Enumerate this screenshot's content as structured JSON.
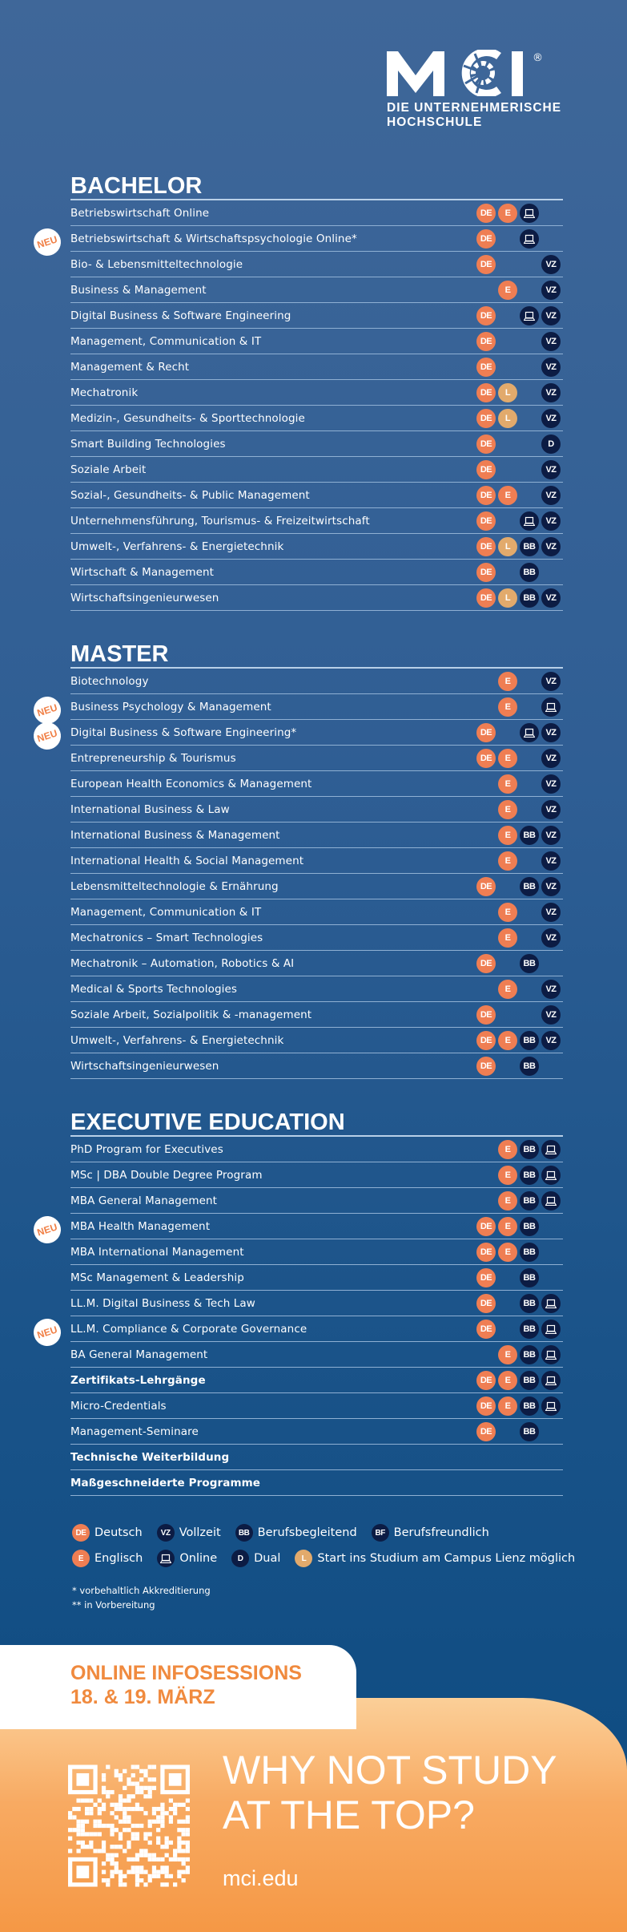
{
  "logo": {
    "mark": "MCI",
    "registered": "®",
    "subtitle_line1": "DIE UNTERNEHMERISCHE",
    "subtitle_line2": "HOCHSCHULE"
  },
  "badge_labels": {
    "DE": "DE",
    "E": "E",
    "L": "L",
    "BB": "BB",
    "VZ": "VZ",
    "D": "D",
    "BF": "BF",
    "ON": ""
  },
  "neu_label": "NEU",
  "colors": {
    "orange": "#ef7e53",
    "tan": "#e2aa6c",
    "navy": "#0c1c44",
    "accent": "#f08a3e"
  },
  "sections": [
    {
      "title": "BACHELOR",
      "rows": [
        {
          "name": "Betriebswirtschaft Online",
          "b": [
            "DE",
            "E",
            "ON",
            null
          ]
        },
        {
          "name": "Betriebswirtschaft & Wirtschaftspsychologie Online*",
          "neu": true,
          "b": [
            "DE",
            null,
            "ON",
            null
          ]
        },
        {
          "name": "Bio- & Lebensmitteltechnologie",
          "b": [
            "DE",
            null,
            null,
            "VZ"
          ]
        },
        {
          "name": "Business & Management",
          "b": [
            null,
            "E",
            null,
            "VZ"
          ]
        },
        {
          "name": "Digital Business & Software Engineering",
          "b": [
            "DE",
            null,
            "ON",
            "VZ"
          ]
        },
        {
          "name": "Management, Communication & IT",
          "b": [
            "DE",
            null,
            null,
            "VZ"
          ]
        },
        {
          "name": "Management & Recht",
          "b": [
            "DE",
            null,
            null,
            "VZ"
          ]
        },
        {
          "name": "Mechatronik",
          "b": [
            "DE",
            "L",
            null,
            "VZ"
          ]
        },
        {
          "name": "Medizin-, Gesundheits- & Sporttechnologie",
          "b": [
            "DE",
            "L",
            null,
            "VZ"
          ]
        },
        {
          "name": "Smart Building Technologies",
          "b": [
            "DE",
            null,
            null,
            "D"
          ]
        },
        {
          "name": "Soziale Arbeit",
          "b": [
            "DE",
            null,
            null,
            "VZ"
          ]
        },
        {
          "name": "Sozial-, Gesundheits- & Public Management",
          "b": [
            "DE",
            "E",
            null,
            "VZ"
          ]
        },
        {
          "name": "Unternehmensführung, Tourismus- & Freizeitwirtschaft",
          "b": [
            "DE",
            null,
            "ON",
            "VZ"
          ]
        },
        {
          "name": "Umwelt-, Verfahrens- & Energietechnik",
          "b": [
            "DE",
            "L",
            "BB",
            "VZ"
          ]
        },
        {
          "name": "Wirtschaft & Management",
          "b": [
            "DE",
            null,
            "BB",
            null
          ]
        },
        {
          "name": "Wirtschaftsingenieurwesen",
          "b": [
            "DE",
            "L",
            "BB",
            "VZ"
          ]
        }
      ]
    },
    {
      "title": "MASTER",
      "rows": [
        {
          "name": "Biotechnology",
          "b": [
            null,
            "E",
            null,
            "VZ"
          ]
        },
        {
          "name": "Business Psychology & Management",
          "neu": true,
          "b": [
            null,
            "E",
            null,
            "ON"
          ]
        },
        {
          "name": "Digital Business & Software Engineering*",
          "neu": true,
          "b": [
            "DE",
            null,
            "ON",
            "VZ"
          ]
        },
        {
          "name": "Entrepreneurship & Tourismus",
          "b": [
            "DE",
            "E",
            null,
            "VZ"
          ]
        },
        {
          "name": "European Health Economics & Management",
          "b": [
            null,
            "E",
            null,
            "VZ"
          ]
        },
        {
          "name": "International Business & Law",
          "b": [
            null,
            "E",
            null,
            "VZ"
          ]
        },
        {
          "name": "International Business & Management",
          "b": [
            null,
            "E",
            "BB",
            "VZ"
          ]
        },
        {
          "name": "International Health & Social Management",
          "b": [
            null,
            "E",
            null,
            "VZ"
          ]
        },
        {
          "name": "Lebensmitteltechnologie & Ernährung",
          "b": [
            "DE",
            null,
            "BB",
            "VZ"
          ]
        },
        {
          "name": "Management, Communication & IT",
          "b": [
            null,
            "E",
            null,
            "VZ"
          ]
        },
        {
          "name": "Mechatronics – Smart Technologies",
          "b": [
            null,
            "E",
            null,
            "VZ"
          ]
        },
        {
          "name": "Mechatronik – Automation, Robotics & AI",
          "b": [
            "DE",
            null,
            "BB",
            null
          ]
        },
        {
          "name": "Medical & Sports Technologies",
          "b": [
            null,
            "E",
            null,
            "VZ"
          ]
        },
        {
          "name": "Soziale Arbeit, Sozialpolitik & -management",
          "b": [
            "DE",
            null,
            null,
            "VZ"
          ]
        },
        {
          "name": "Umwelt-, Verfahrens- & Energietechnik",
          "b": [
            "DE",
            "E",
            "BB",
            "VZ"
          ]
        },
        {
          "name": "Wirtschaftsingenieurwesen",
          "b": [
            "DE",
            null,
            "BB",
            null
          ]
        }
      ]
    },
    {
      "title": "EXECUTIVE EDUCATION",
      "rows": [
        {
          "name": "PhD Program for Executives",
          "b": [
            null,
            "E",
            "BB",
            "ON"
          ]
        },
        {
          "name": "MSc | DBA Double Degree Program",
          "b": [
            null,
            "E",
            "BB",
            "ON"
          ]
        },
        {
          "name": "MBA General Management",
          "b": [
            null,
            "E",
            "BB",
            "ON"
          ]
        },
        {
          "name": "MBA Health Management",
          "neu": true,
          "b": [
            "DE",
            "E",
            "BB",
            null
          ]
        },
        {
          "name": "MBA International Management",
          "b": [
            "DE",
            "E",
            "BB",
            null
          ]
        },
        {
          "name": "MSc Management & Leadership",
          "b": [
            "DE",
            null,
            "BB",
            null
          ]
        },
        {
          "name": "LL.M. Digital Business & Tech Law",
          "b": [
            "DE",
            null,
            "BB",
            "ON"
          ]
        },
        {
          "name": "LL.M. Compliance & Corporate Governance",
          "neu": true,
          "b": [
            "DE",
            null,
            "BB",
            "ON"
          ]
        },
        {
          "name": "BA General Management",
          "b": [
            null,
            "E",
            "BB",
            "ON"
          ]
        },
        {
          "name": "Zertifikats-Lehrgänge",
          "bold": true,
          "b": [
            "DE",
            "E",
            "BB",
            "ON"
          ]
        },
        {
          "name": "Micro-Credentials",
          "b": [
            "DE",
            "E",
            "BB",
            "ON"
          ]
        },
        {
          "name": "Management-Seminare",
          "b": [
            "DE",
            null,
            "BB",
            null
          ]
        },
        {
          "name": "Technische Weiterbildung",
          "bold": true,
          "b": [
            null,
            null,
            null,
            null
          ]
        },
        {
          "name": "Maßgeschneiderte Programme",
          "bold": true,
          "b": [
            null,
            null,
            null,
            null
          ]
        }
      ]
    }
  ],
  "legend": [
    [
      {
        "code": "DE",
        "label": "Deutsch"
      },
      {
        "code": "VZ",
        "label": "Vollzeit"
      },
      {
        "code": "BB",
        "label": "Berufsbegleitend"
      },
      {
        "code": "BF",
        "label": "Berufsfreundlich"
      }
    ],
    [
      {
        "code": "E",
        "label": "Englisch"
      },
      {
        "code": "ON",
        "label": "Online"
      },
      {
        "code": "D",
        "label": "Dual"
      },
      {
        "code": "L",
        "label": "Start ins Studium am Campus Lienz möglich"
      }
    ]
  ],
  "notes": {
    "n1": "* vorbehaltlich Akkreditierung",
    "n2": "** in Vorbereitung"
  },
  "info": {
    "line1": "ONLINE INFOSESSIONS",
    "line2": "18. & 19. MÄRZ"
  },
  "footer": {
    "slogan_line1": "WHY NOT STUDY",
    "slogan_line2": "AT THE TOP?",
    "url": "mci.edu"
  }
}
